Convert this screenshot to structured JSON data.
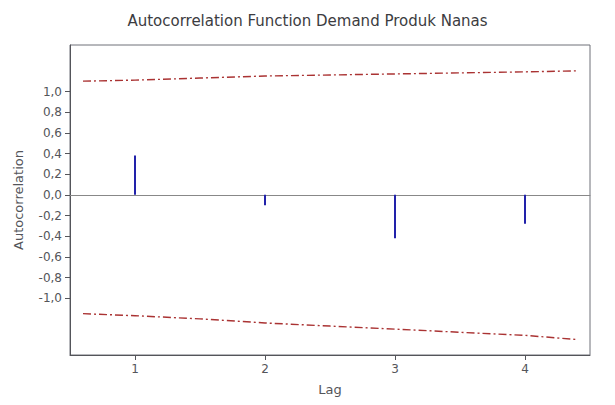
{
  "chart_data": {
    "type": "stem",
    "title": "Autocorrelation Function Demand Produk Nanas",
    "xlabel": "Lag",
    "ylabel": "Autocorrelation",
    "xlim": [
      0.5,
      4.5
    ],
    "ylim": [
      -1.55,
      1.45
    ],
    "xticks": [
      1,
      2,
      3,
      4
    ],
    "yticks": [
      {
        "value": -1.0,
        "label": "-1,0"
      },
      {
        "value": -0.8,
        "label": "-0,8"
      },
      {
        "value": -0.6,
        "label": "-0,6"
      },
      {
        "value": -0.4,
        "label": "-0,4"
      },
      {
        "value": -0.2,
        "label": "-0,2"
      },
      {
        "value": 0.0,
        "label": "0,0"
      },
      {
        "value": 0.2,
        "label": "0,2"
      },
      {
        "value": 0.4,
        "label": "0,4"
      },
      {
        "value": 0.6,
        "label": "0,6"
      },
      {
        "value": 0.8,
        "label": "0,8"
      },
      {
        "value": 1.0,
        "label": "1,0"
      }
    ],
    "grid": false,
    "series": [
      {
        "type": "stem",
        "x": [
          1,
          2,
          3,
          4
        ],
        "values": [
          0.38,
          -0.1,
          -0.42,
          -0.28
        ],
        "color": "#2222AA"
      },
      {
        "type": "line",
        "x": [
          0.6,
          1.0,
          1.5,
          2.0,
          2.5,
          3.0,
          3.5,
          4.0,
          4.4
        ],
        "values": [
          1.1,
          1.11,
          1.13,
          1.15,
          1.16,
          1.17,
          1.18,
          1.19,
          1.2
        ],
        "color": "#AA3333",
        "line_style": "dashdot"
      },
      {
        "type": "line",
        "x": [
          0.6,
          1.0,
          1.5,
          2.0,
          2.5,
          3.0,
          3.5,
          4.0,
          4.4
        ],
        "values": [
          -1.15,
          -1.17,
          -1.2,
          -1.24,
          -1.27,
          -1.3,
          -1.33,
          -1.36,
          -1.4
        ],
        "color": "#AA3333",
        "line_style": "dashdot"
      }
    ]
  }
}
